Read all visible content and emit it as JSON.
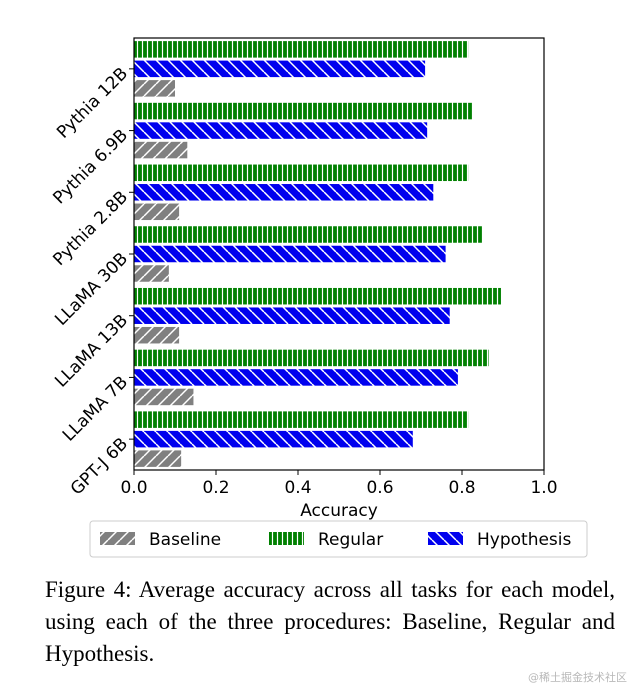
{
  "chart_data": {
    "type": "bar",
    "orientation": "horizontal",
    "categories": [
      "Pythia 12B",
      "Pythia 6.9B",
      "Pythia 2.8B",
      "LLaMA 30B",
      "LLaMA 13B",
      "LLaMA 7B",
      "GPT-J 6B"
    ],
    "series": [
      {
        "name": "Regular",
        "color": "#008000",
        "hatch": "vertical",
        "values": [
          0.815,
          0.825,
          0.815,
          0.85,
          0.895,
          0.865,
          0.815
        ]
      },
      {
        "name": "Hypothesis",
        "color": "#0000ee",
        "hatch": "backslash",
        "values": [
          0.71,
          0.715,
          0.73,
          0.76,
          0.77,
          0.79,
          0.68
        ]
      },
      {
        "name": "Baseline",
        "color": "#808080",
        "hatch": "slash",
        "values": [
          0.1,
          0.13,
          0.11,
          0.085,
          0.11,
          0.145,
          0.115
        ]
      }
    ],
    "legend_order": [
      "Baseline",
      "Regular",
      "Hypothesis"
    ],
    "xlabel": "Accuracy",
    "xlim": [
      0.0,
      1.0
    ],
    "xticks": [
      "0.0",
      "0.2",
      "0.4",
      "0.6",
      "0.8",
      "1.0"
    ],
    "grid": false,
    "legend_position": "bottom"
  },
  "caption": "Figure 4: Average accuracy across all tasks for each model, using each of the three procedures: Baseline, Regular and Hypothesis.",
  "watermark": "@稀土掘金技术社区"
}
